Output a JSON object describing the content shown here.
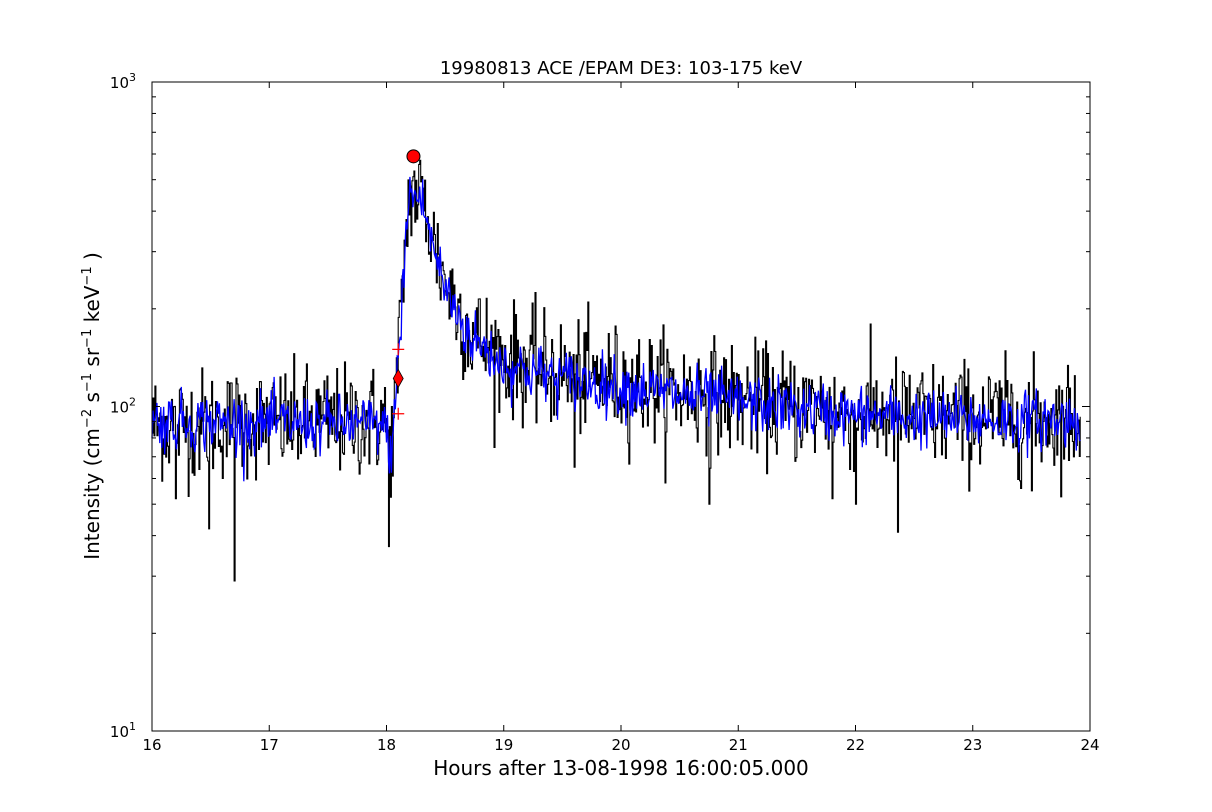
{
  "chart_data": {
    "type": "line",
    "title": "19980813 ACE /EPAM DE3: 103-175 keV",
    "xlabel": "Hours after 13-08-1998 16:00:05.000",
    "ylabel": "Intensity (cm$^{-2}$ s$^{-1}$ sr$^{-1}$ keV$^{-1}$)",
    "ylabel_parts": {
      "prefix": "Intensity (cm",
      "sup1": "−2",
      "s": " s",
      "sup2": "−1",
      "sr": " sr",
      "sup3": "−1",
      "kev": " keV",
      "sup4": "−1",
      "suffix": " )"
    },
    "xlim": [
      16,
      24
    ],
    "ylim": [
      10,
      1000
    ],
    "yscale": "log",
    "grid": false,
    "legend": "none",
    "x_ticks": [
      16,
      17,
      18,
      19,
      20,
      21,
      22,
      23,
      24
    ],
    "x_tick_labels": [
      "16",
      "17",
      "18",
      "19",
      "20",
      "21",
      "22",
      "23",
      "24"
    ],
    "y_ticks": [
      10,
      100,
      1000
    ],
    "y_tick_labels": [
      {
        "base": "10",
        "exp": "1"
      },
      {
        "base": "10",
        "exp": "2"
      },
      {
        "base": "10",
        "exp": "3"
      }
    ],
    "series": [
      {
        "color": "#000000",
        "profile": [
          [
            16.0,
            88
          ],
          [
            17.98,
            90
          ],
          [
            18.05,
            80
          ],
          [
            18.1,
            140
          ],
          [
            18.15,
            300
          ],
          [
            18.2,
            470
          ],
          [
            18.3,
            440
          ],
          [
            18.4,
            320
          ],
          [
            18.5,
            240
          ],
          [
            18.7,
            170
          ],
          [
            19.0,
            140
          ],
          [
            19.5,
            125
          ],
          [
            20.0,
            118
          ],
          [
            21.0,
            105
          ],
          [
            22.0,
            95
          ],
          [
            23.0,
            92
          ],
          [
            23.92,
            92
          ]
        ],
        "spikes": [
          [
            16.2,
            52
          ],
          [
            16.48,
            42
          ],
          [
            16.7,
            29
          ],
          [
            18.02,
            37
          ],
          [
            19.6,
            65
          ],
          [
            20.75,
            50
          ],
          [
            21.8,
            52
          ],
          [
            22.0,
            50
          ],
          [
            22.36,
            41
          ],
          [
            23.5,
            55
          ]
        ]
      },
      {
        "color": "#0000ff",
        "profile": [
          [
            16.0,
            90
          ],
          [
            17.98,
            88
          ],
          [
            18.03,
            70
          ],
          [
            18.1,
            130
          ],
          [
            18.15,
            280
          ],
          [
            18.2,
            460
          ],
          [
            18.3,
            430
          ],
          [
            18.4,
            310
          ],
          [
            18.5,
            230
          ],
          [
            18.7,
            165
          ],
          [
            19.0,
            135
          ],
          [
            19.5,
            122
          ],
          [
            20.0,
            115
          ],
          [
            21.0,
            103
          ],
          [
            22.0,
            94
          ],
          [
            23.0,
            91
          ],
          [
            23.92,
            91
          ]
        ]
      }
    ],
    "markers": [
      {
        "shape": "circle",
        "color": "#ff0000",
        "x": 18.23,
        "y": 590
      },
      {
        "shape": "diamond",
        "color": "#ff0000",
        "x": 18.1,
        "y": 122
      },
      {
        "shape": "plus",
        "color": "#ff0000",
        "x": 18.1,
        "y": 150
      },
      {
        "shape": "plus",
        "color": "#ff0000",
        "x": 18.1,
        "y": 95
      }
    ]
  }
}
